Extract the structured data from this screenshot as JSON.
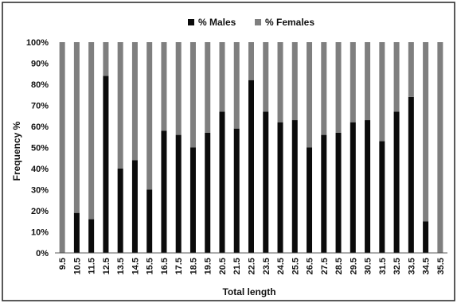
{
  "colors": {
    "males": "#0b0b0b",
    "females": "#7f7f7f",
    "axis": "#595959",
    "frame": "#222222",
    "text": "#111111"
  },
  "chart_data": {
    "type": "bar",
    "stacked": true,
    "percent_stacked": true,
    "xlabel": "Total length",
    "ylabel": "Frequency %",
    "ylim": [
      0,
      100
    ],
    "y_ticks": [
      "0%",
      "10%",
      "20%",
      "30%",
      "40%",
      "50%",
      "60%",
      "70%",
      "80%",
      "90%",
      "100%"
    ],
    "grid": false,
    "legend_position": "top",
    "categories": [
      "9.5",
      "10.5",
      "11.5",
      "12.5",
      "13.5",
      "14.5",
      "15.5",
      "16.5",
      "17.5",
      "18.5",
      "19.5",
      "20.5",
      "21.5",
      "22.5",
      "23.5",
      "24.5",
      "25.5",
      "26.5",
      "27.5",
      "28.5",
      "29.5",
      "30.5",
      "31.5",
      "32.5",
      "33.5",
      "34.5",
      "35.5"
    ],
    "series": [
      {
        "name": "% Males",
        "values": [
          0,
          19,
          16,
          84,
          40,
          44,
          30,
          58,
          56,
          50,
          57,
          67,
          59,
          82,
          67,
          62,
          63,
          50,
          56,
          57,
          62,
          63,
          53,
          67,
          74,
          15,
          0
        ]
      },
      {
        "name": "% Females",
        "values": [
          100,
          81,
          84,
          16,
          60,
          56,
          70,
          42,
          44,
          50,
          43,
          33,
          41,
          18,
          33,
          38,
          37,
          50,
          44,
          43,
          38,
          37,
          47,
          33,
          26,
          85,
          100
        ]
      }
    ]
  }
}
